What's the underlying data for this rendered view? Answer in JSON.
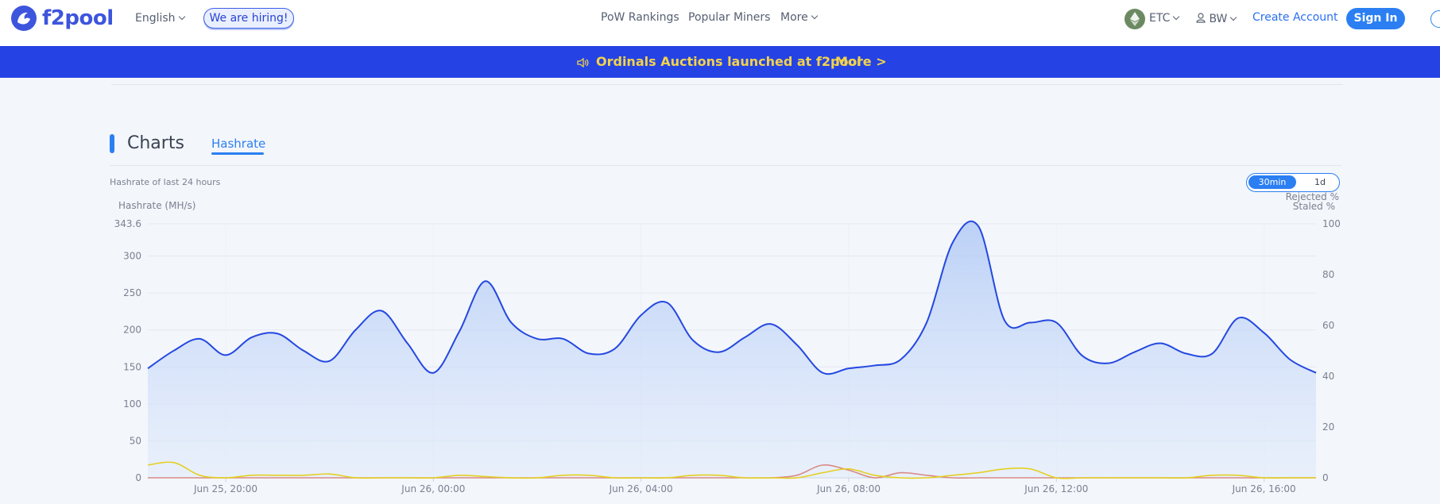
{
  "header": {
    "logo_text": "f2pool",
    "language": "English",
    "hiring": "We are hiring!",
    "nav": [
      "PoW Rankings",
      "Popular Miners",
      "More"
    ],
    "coin": "ETC",
    "user": "BW",
    "create_account": "Create Account",
    "sign_in": "Sign In",
    "icons": {
      "logo": "f2pool-logo-icon",
      "coin": "ethereum-classic-icon",
      "user": "user-icon",
      "search": "search-icon",
      "speaker": "speaker-icon"
    }
  },
  "banner": {
    "text": "Ordinals Auctions launched at f2pool",
    "more": "More >",
    "bg_color": "#2543e4",
    "text_color": "#f3d34a"
  },
  "charts": {
    "title": "Charts",
    "tab": "Hashrate",
    "subtitle": "Hashrate of last 24 hours",
    "toggle": {
      "active": "30min",
      "inactive": "1d"
    }
  },
  "chart_data": {
    "type": "area",
    "ylabel": "Hashrate (MH/s)",
    "ylabel_right": [
      "Rejected %",
      "Staled %"
    ],
    "ylim": [
      0,
      343.6
    ],
    "yticks": [
      "343.6",
      "300",
      "250",
      "200",
      "150",
      "100",
      "50",
      "0"
    ],
    "ylim_right": [
      0,
      100
    ],
    "yticks_right": [
      "100",
      "80",
      "60",
      "40",
      "20",
      "0"
    ],
    "xticks": [
      "Jun 25, 20:00",
      "Jun 26, 00:00",
      "Jun 26, 04:00",
      "Jun 26, 08:00",
      "Jun 26, 12:00",
      "Jun 26, 16:00"
    ],
    "x": [
      18.5,
      19.0,
      19.5,
      20.0,
      20.5,
      21.0,
      21.5,
      22.0,
      22.5,
      23.0,
      23.5,
      24.0,
      24.5,
      25.0,
      25.5,
      26.0,
      26.5,
      27.0,
      27.5,
      28.0,
      28.5,
      29.0,
      29.5,
      30.0,
      30.5,
      31.0,
      31.5,
      32.0,
      32.5,
      33.0,
      33.5,
      34.0,
      34.5,
      35.0,
      35.5,
      36.0,
      36.5,
      37.0,
      37.5,
      38.0,
      38.5,
      39.0,
      39.5,
      40.0,
      40.5,
      41.0
    ],
    "series": [
      {
        "name": "Hashrate",
        "color": "#2448e0",
        "values": [
          148,
          172,
          188,
          166,
          190,
          195,
          172,
          158,
          200,
          226,
          182,
          142,
          198,
          266,
          210,
          188,
          188,
          168,
          175,
          220,
          237,
          186,
          170,
          190,
          208,
          180,
          142,
          148,
          152,
          160,
          210,
          318,
          340,
          213,
          210,
          210,
          165,
          155,
          170,
          182,
          168,
          168,
          216,
          196,
          160,
          142
        ]
      },
      {
        "name": "Rejected %",
        "axis": "right",
        "color": "#d98a86",
        "values": [
          0,
          0,
          0,
          0,
          0,
          0,
          0,
          0,
          0,
          0,
          0,
          0,
          0,
          0,
          0,
          0,
          0,
          0,
          0,
          0,
          0,
          0,
          0,
          0,
          0,
          1,
          5,
          3,
          0,
          2,
          1,
          0,
          0,
          0,
          0,
          0,
          0,
          0,
          0,
          0,
          0,
          0,
          0,
          0,
          0,
          0
        ]
      },
      {
        "name": "Staled %",
        "axis": "right",
        "color": "#e5cf22",
        "values": [
          5,
          6,
          1,
          0,
          1,
          1,
          1,
          1.5,
          0,
          0,
          0,
          0,
          1,
          0.5,
          0,
          0,
          1,
          1,
          0,
          0,
          0,
          1,
          1,
          0,
          0,
          0,
          2,
          3.5,
          1,
          0,
          0,
          1,
          2,
          3.5,
          3.5,
          0,
          0,
          0,
          0,
          0,
          0,
          1,
          1,
          0,
          0,
          0
        ]
      }
    ]
  }
}
